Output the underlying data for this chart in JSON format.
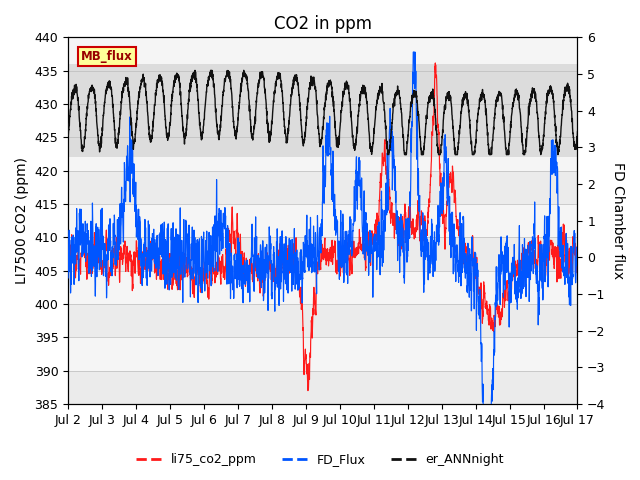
{
  "title": "CO2 in ppm",
  "ylabel_left": "LI7500 CO2 (ppm)",
  "ylabel_right": "FD Chamber flux",
  "ylim_left": [
    385,
    440
  ],
  "ylim_right": [
    -4.0,
    6.0
  ],
  "xlim": [
    0,
    15
  ],
  "xtick_labels": [
    "Jul 2",
    "Jul 3",
    "Jul 4",
    "Jul 5",
    "Jul 6",
    "Jul 7",
    "Jul 8",
    "Jul 9",
    "Jul 10",
    "Jul 11",
    "Jul 12",
    "Jul 13",
    "Jul 14",
    "Jul 15",
    "Jul 16",
    "Jul 17"
  ],
  "xtick_positions": [
    0,
    1,
    2,
    3,
    4,
    5,
    6,
    7,
    8,
    9,
    10,
    11,
    12,
    13,
    14,
    15
  ],
  "color_red": "#ff1a1a",
  "color_blue": "#0055ff",
  "color_black": "#111111",
  "legend_labels": [
    "li75_co2_ppm",
    "FD_Flux",
    "er_ANNnight"
  ],
  "mb_flux_label": "MB_flux",
  "mb_flux_facecolor": "#ffff99",
  "mb_flux_edgecolor": "#cc0000",
  "gray_band_ranges": [
    [
      422,
      436
    ]
  ],
  "title_fontsize": 12,
  "axis_label_fontsize": 10,
  "tick_fontsize": 9
}
